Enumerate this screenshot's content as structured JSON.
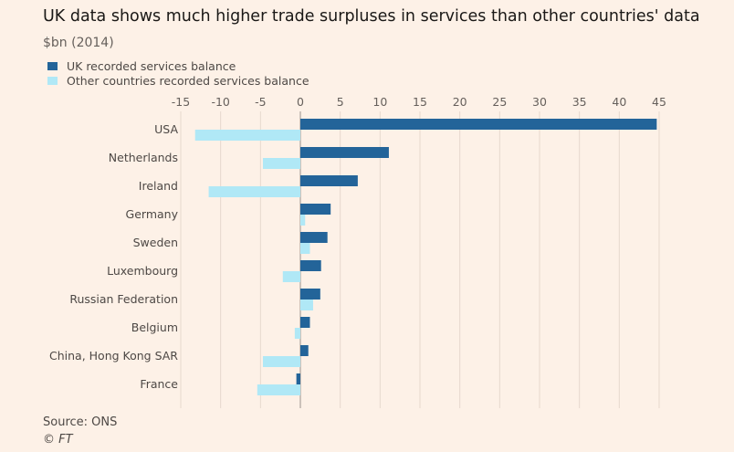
{
  "title": "UK data shows much higher trade surpluses in services than other countries' data",
  "subtitle": "$bn (2014)",
  "source": "Source: ONS",
  "copyright": "© FT",
  "colors": {
    "uk": "#236499",
    "other": "#b0e8f6",
    "grid": "#e6d9ce",
    "zero": "#9a928c"
  },
  "chart_data": {
    "type": "bar",
    "orientation": "horizontal",
    "xlim": [
      -15,
      45
    ],
    "xticks": [
      -15,
      -10,
      -5,
      0,
      5,
      10,
      15,
      20,
      25,
      30,
      35,
      40,
      45
    ],
    "xtick_labels": [
      "-15",
      "-10",
      "-5",
      "0",
      "5",
      "10",
      "15",
      "20",
      "25",
      "30",
      "35",
      "40",
      "45"
    ],
    "categories": [
      "USA",
      "Netherlands",
      "Ireland",
      "Germany",
      "Sweden",
      "Luxembourg",
      "Russian Federation",
      "Belgium",
      "China, Hong Kong SAR",
      "France"
    ],
    "series": [
      {
        "name": "UK recorded services balance",
        "values": [
          44.7,
          11.1,
          7.2,
          3.8,
          3.4,
          2.6,
          2.5,
          1.2,
          1.0,
          -0.5
        ]
      },
      {
        "name": "Other countries recorded services balance",
        "values": [
          -13.2,
          -4.7,
          -11.5,
          0.6,
          1.2,
          -2.2,
          1.6,
          -0.7,
          -4.7,
          -5.4
        ]
      }
    ],
    "legend_position": "top-left",
    "grid": true
  }
}
